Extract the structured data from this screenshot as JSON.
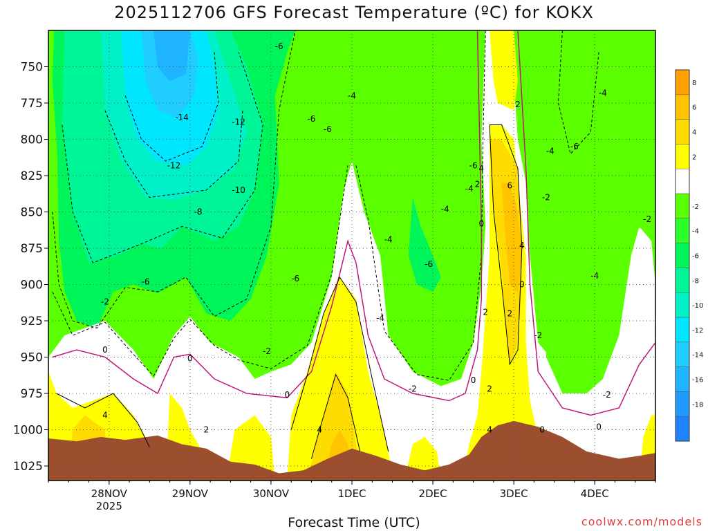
{
  "chart_data": {
    "type": "heatmap",
    "title": "2025112706 GFS Forecast Temperature (ºC) for KOKX",
    "xlabel": "Forecast Time (UTC)",
    "ylabel": "",
    "y_scale": "pressure (inverted, top 725 to bottom 1035)",
    "y_ticks": [
      750,
      775,
      800,
      825,
      850,
      875,
      900,
      925,
      950,
      975,
      1000,
      1025
    ],
    "x_ticks": [
      {
        "label": "28NOV",
        "sublabel": "2025",
        "day": 1
      },
      {
        "label": "29NOV",
        "sublabel": "",
        "day": 2
      },
      {
        "label": "30NOV",
        "sublabel": "",
        "day": 3
      },
      {
        "label": "1DEC",
        "sublabel": "",
        "day": 4
      },
      {
        "label": "2DEC",
        "sublabel": "",
        "day": 5
      },
      {
        "label": "3DEC",
        "sublabel": "",
        "day": 6
      },
      {
        "label": "4DEC",
        "sublabel": "",
        "day": 7
      }
    ],
    "x_range_days": [
      0.25,
      7.75
    ],
    "grid": true,
    "colorbar": {
      "levels": [
        {
          "label": "",
          "color": "#1f83ff"
        },
        {
          "label": "-18",
          "color": "#1f9bff"
        },
        {
          "label": "-16",
          "color": "#1fb4ff"
        },
        {
          "label": "-14",
          "color": "#1fcdff"
        },
        {
          "label": "-12",
          "color": "#00e6ff"
        },
        {
          "label": "-10",
          "color": "#00f0c8"
        },
        {
          "label": "-8",
          "color": "#00f596"
        },
        {
          "label": "-6",
          "color": "#00f55a"
        },
        {
          "label": "-4",
          "color": "#2aff2a"
        },
        {
          "label": "-2",
          "color": "#5aff00"
        },
        {
          "label": "",
          "color": "#ffffff"
        },
        {
          "label": "2",
          "color": "#ffff00"
        },
        {
          "label": "4",
          "color": "#ffdc00"
        },
        {
          "label": "6",
          "color": "#ffc300"
        },
        {
          "label": "8",
          "color": "#ffa000"
        }
      ]
    },
    "contour_labels": [
      {
        "text": "-6",
        "day": 3.1,
        "p": 736
      },
      {
        "text": "-4",
        "day": 4.0,
        "p": 770
      },
      {
        "text": "-14",
        "day": 1.9,
        "p": 785
      },
      {
        "text": "-12",
        "day": 2.6,
        "p": 788
      },
      {
        "text": "-6",
        "day": 3.5,
        "p": 786
      },
      {
        "text": "-6",
        "day": 3.7,
        "p": 793
      },
      {
        "text": "-12",
        "day": 1.8,
        "p": 818
      },
      {
        "text": "-10",
        "day": 2.6,
        "p": 835
      },
      {
        "text": "-8",
        "day": 2.1,
        "p": 850
      },
      {
        "text": "-6",
        "day": 1.45,
        "p": 898
      },
      {
        "text": "-6",
        "day": 3.3,
        "p": 896
      },
      {
        "text": "-2",
        "day": 0.95,
        "p": 912
      },
      {
        "text": "0",
        "day": 0.95,
        "p": 945
      },
      {
        "text": "0",
        "day": 2.0,
        "p": 951
      },
      {
        "text": "-2",
        "day": 2.95,
        "p": 946
      },
      {
        "text": "0",
        "day": 3.2,
        "p": 976
      },
      {
        "text": "4",
        "day": 0.95,
        "p": 990
      },
      {
        "text": "2",
        "day": 2.2,
        "p": 1000
      },
      {
        "text": "4",
        "day": 3.6,
        "p": 1000
      },
      {
        "text": "-2",
        "day": 4.75,
        "p": 972
      },
      {
        "text": "-4",
        "day": 4.45,
        "p": 869
      },
      {
        "text": "-6",
        "day": 4.95,
        "p": 886
      },
      {
        "text": "-4",
        "day": 4.35,
        "p": 923
      },
      {
        "text": "-6",
        "day": 5.5,
        "p": 818
      },
      {
        "text": "4",
        "day": 5.6,
        "p": 820
      },
      {
        "text": "2",
        "day": 5.55,
        "p": 831
      },
      {
        "text": "-4",
        "day": 5.45,
        "p": 834
      },
      {
        "text": "-4",
        "day": 5.15,
        "p": 848
      },
      {
        "text": "0",
        "day": 5.6,
        "p": 858
      },
      {
        "text": "6",
        "day": 5.95,
        "p": 832
      },
      {
        "text": "4",
        "day": 6.1,
        "p": 873
      },
      {
        "text": "0",
        "day": 6.1,
        "p": 900
      },
      {
        "text": "2",
        "day": 5.65,
        "p": 919
      },
      {
        "text": "2",
        "day": 5.95,
        "p": 920
      },
      {
        "text": "-2",
        "day": 6.3,
        "p": 935
      },
      {
        "text": "0",
        "day": 5.5,
        "p": 966
      },
      {
        "text": "2",
        "day": 5.7,
        "p": 972
      },
      {
        "text": "4",
        "day": 5.7,
        "p": 1000
      },
      {
        "text": "0",
        "day": 6.35,
        "p": 1000
      },
      {
        "text": "2",
        "day": 6.05,
        "p": 776
      },
      {
        "text": "-4",
        "day": 6.45,
        "p": 808
      },
      {
        "text": "-2",
        "day": 6.4,
        "p": 840
      },
      {
        "text": "-6",
        "day": 6.75,
        "p": 805
      },
      {
        "text": "-4",
        "day": 7.1,
        "p": 768
      },
      {
        "text": "-2",
        "day": 7.65,
        "p": 855
      },
      {
        "text": "-4",
        "day": 7.0,
        "p": 894
      },
      {
        "text": "-2",
        "day": 7.15,
        "p": 976
      },
      {
        "text": "0",
        "day": 7.05,
        "p": 998
      }
    ]
  },
  "watermark": "coolwx.com/models",
  "colors": {
    "terrain": "#9c4f2e",
    "freezing_line": "#c01878",
    "grid": "#555555"
  }
}
